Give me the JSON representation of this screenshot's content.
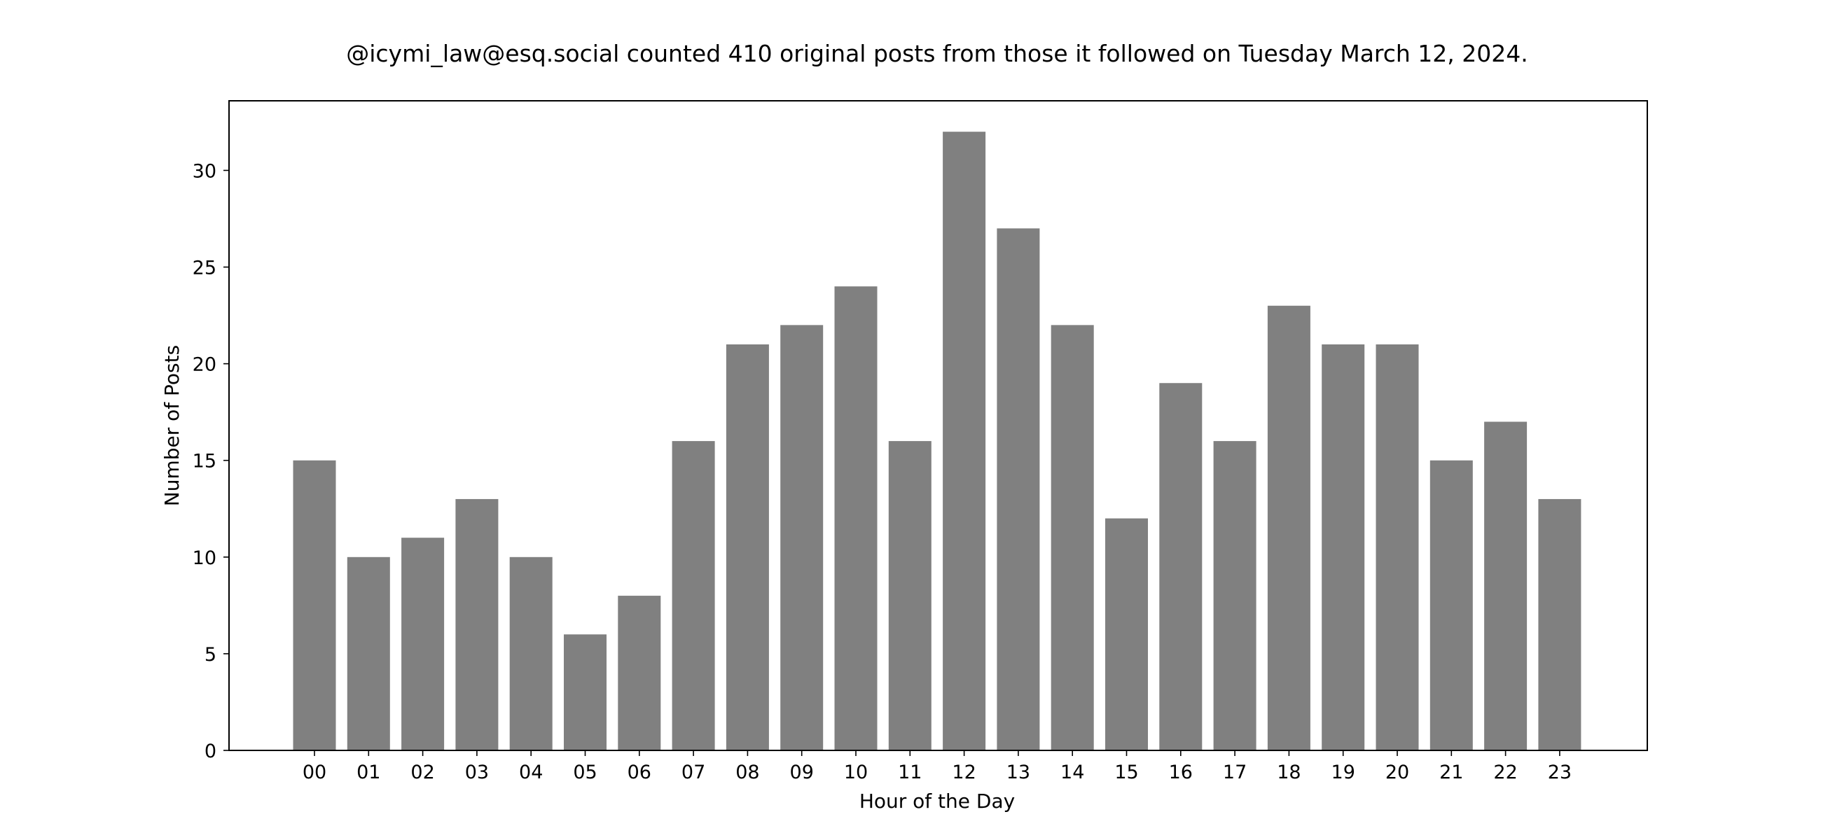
{
  "chart_data": {
    "type": "bar",
    "title": "@icymi_law@esq.social counted 410 original posts from those it followed on Tuesday March 12, 2024.",
    "xlabel": "Hour of the Day",
    "ylabel": "Number of Posts",
    "categories": [
      "00",
      "01",
      "02",
      "03",
      "04",
      "05",
      "06",
      "07",
      "08",
      "09",
      "10",
      "11",
      "12",
      "13",
      "14",
      "15",
      "16",
      "17",
      "18",
      "19",
      "20",
      "21",
      "22",
      "23"
    ],
    "values": [
      15,
      10,
      11,
      13,
      10,
      6,
      8,
      16,
      21,
      22,
      24,
      16,
      32,
      27,
      22,
      12,
      19,
      16,
      23,
      21,
      21,
      15,
      17,
      13
    ],
    "ylim": [
      0,
      33.6
    ],
    "yticks": [
      "0",
      "5",
      "10",
      "15",
      "20",
      "25",
      "30"
    ],
    "bar_color": "#808080",
    "grid": false,
    "legend": false
  }
}
